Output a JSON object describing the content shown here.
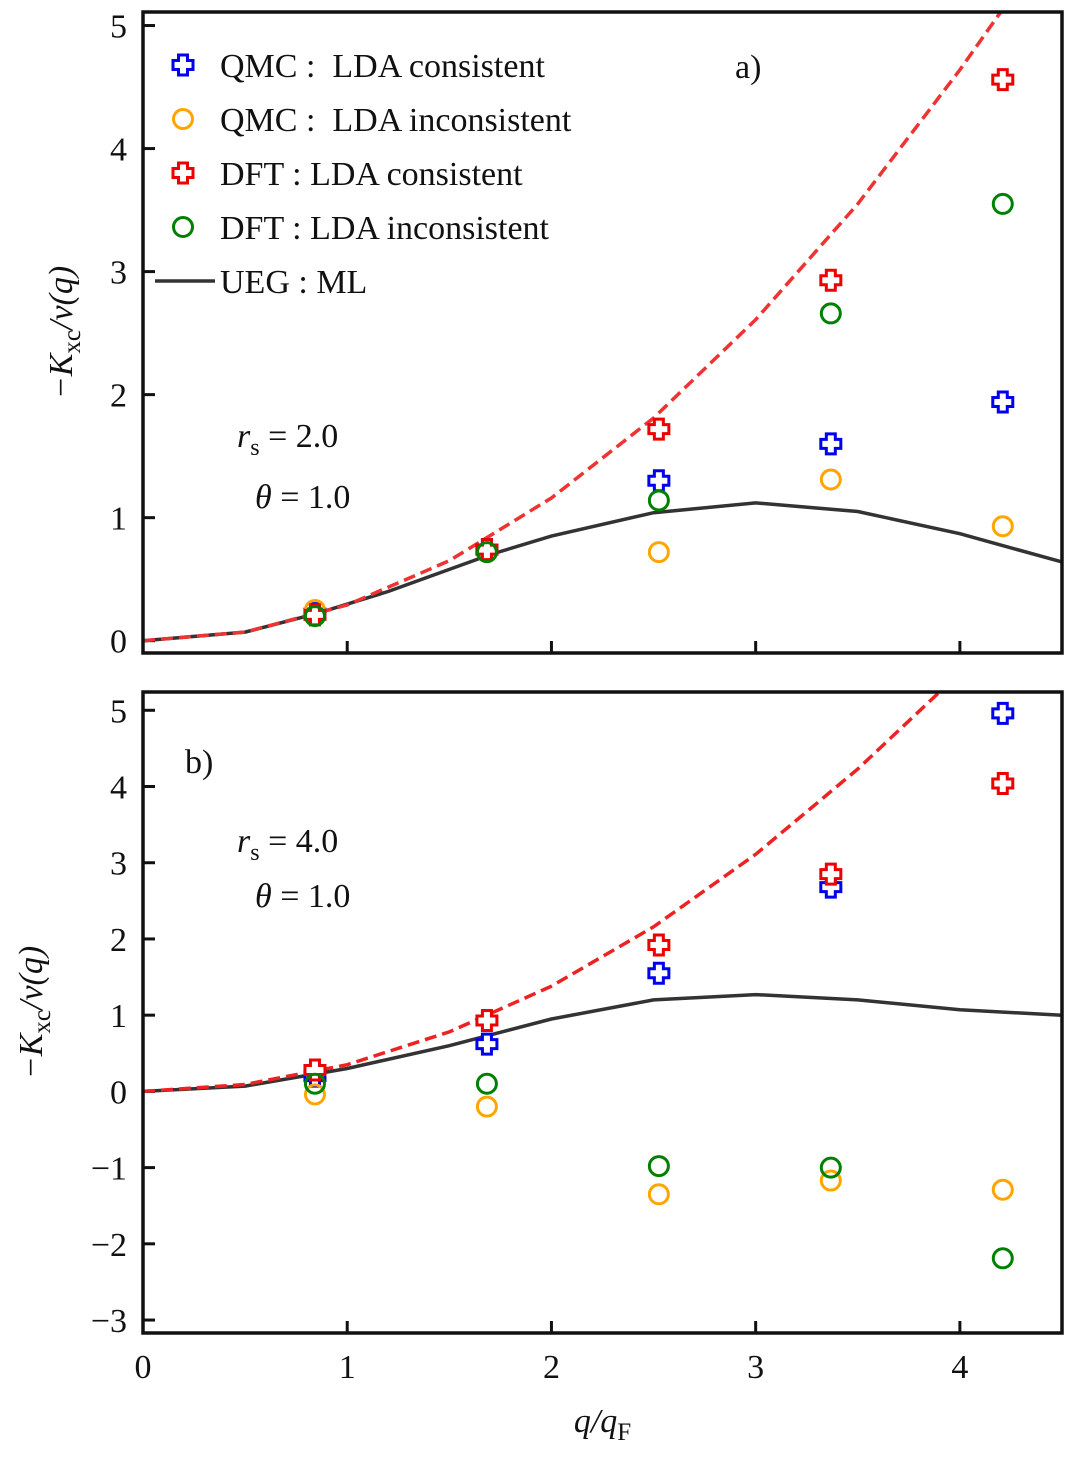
{
  "chart_data": [
    {
      "type": "scatter",
      "panel_label": "a)",
      "legend": "upper left",
      "ylabel": {
        "base": "−K",
        "sub": "xc",
        "rest": "/v(q)"
      },
      "annotations": [
        {
          "base": "r",
          "sub": "s",
          "rest": " = 2.0"
        },
        {
          "base": "θ",
          "sub": "",
          "rest": " = 1.0"
        }
      ],
      "xlim": [
        0,
        4.5
      ],
      "xticks": [
        0,
        1,
        2,
        3,
        4
      ],
      "show_xtick_labels": false,
      "ylim": [
        -0.1,
        5.11
      ],
      "yticks": [
        0,
        1,
        2,
        3,
        4,
        5
      ],
      "series": [
        {
          "name": "QMC :  LDA consistent",
          "color": "#0000ee",
          "marker": "plus",
          "x": [
            0.842,
            1.684,
            2.526,
            3.368,
            4.21
          ],
          "values": [
            0.22,
            0.74,
            1.3,
            1.6,
            1.94
          ]
        },
        {
          "name": "QMC :  LDA inconsistent",
          "color": "#ffa500",
          "marker": "circle",
          "x": [
            0.842,
            1.684,
            2.526,
            3.368,
            4.21
          ],
          "values": [
            0.25,
            0.72,
            0.72,
            1.31,
            0.93
          ]
        },
        {
          "name": "DFT : LDA consistent",
          "color": "#ee0000",
          "marker": "plus",
          "x": [
            0.842,
            1.684,
            2.526,
            3.368,
            4.21
          ],
          "values": [
            0.21,
            0.74,
            1.72,
            2.93,
            4.56
          ]
        },
        {
          "name": "DFT : LDA inconsistent",
          "color": "#008000",
          "marker": "circle",
          "x": [
            0.842,
            1.684,
            2.526,
            3.368,
            4.21
          ],
          "values": [
            0.2,
            0.72,
            1.14,
            2.66,
            3.55
          ]
        },
        {
          "name": "UEG : ML",
          "color": "#333333",
          "linestyle": "solid",
          "x": [
            0,
            0.5,
            0.85,
            1.2,
            1.7,
            2,
            2.5,
            3,
            3.5,
            4,
            4.5
          ],
          "values": [
            0,
            0.07,
            0.22,
            0.4,
            0.7,
            0.85,
            1.04,
            1.12,
            1.05,
            0.87,
            0.64
          ]
        },
        {
          "color": "#ee3333",
          "linestyle": "dashed",
          "x": [
            0,
            0.5,
            1,
            1.5,
            2,
            2.5,
            3,
            3.5,
            4,
            4.2
          ],
          "values": [
            0,
            0.07,
            0.29,
            0.65,
            1.16,
            1.81,
            2.61,
            3.55,
            4.64,
            5.11
          ]
        }
      ]
    },
    {
      "type": "scatter",
      "panel_label": "b)",
      "ylabel": {
        "base": "−K",
        "sub": "xc",
        "rest": "/v(q)"
      },
      "xlabel": {
        "base": "q/q",
        "sub": "F",
        "rest": ""
      },
      "annotations": [
        {
          "base": "r",
          "sub": "s",
          "rest": " = 4.0"
        },
        {
          "base": "θ",
          "sub": "",
          "rest": " = 1.0"
        }
      ],
      "xlim": [
        0,
        4.5
      ],
      "xticks": [
        0,
        1,
        2,
        3,
        4
      ],
      "show_xtick_labels": true,
      "ylim": [
        -3.17,
        5.24
      ],
      "yticks": [
        {
          "value": -3,
          "label": "−3"
        },
        {
          "value": -2,
          "label": "−2"
        },
        {
          "value": -1,
          "label": "−1"
        },
        0,
        1,
        2,
        3,
        4,
        5
      ],
      "series": [
        {
          "color": "#0000ee",
          "marker": "plus",
          "x": [
            0.842,
            1.684,
            2.526,
            3.368,
            4.21
          ],
          "values": [
            0.2,
            0.62,
            1.55,
            2.68,
            4.96
          ]
        },
        {
          "color": "#ffa500",
          "marker": "circle",
          "x": [
            0.842,
            1.684,
            2.526,
            3.368,
            4.21
          ],
          "values": [
            -0.04,
            -0.2,
            -1.35,
            -1.17,
            -1.29
          ]
        },
        {
          "color": "#ee0000",
          "marker": "plus",
          "x": [
            0.842,
            1.684,
            2.526,
            3.368,
            4.21
          ],
          "values": [
            0.28,
            0.93,
            1.92,
            2.85,
            4.04
          ]
        },
        {
          "color": "#008000",
          "marker": "circle",
          "x": [
            0.842,
            1.684,
            2.526,
            3.368,
            4.21
          ],
          "values": [
            0.1,
            0.1,
            -0.98,
            -1.0,
            -2.19
          ]
        },
        {
          "color": "#333333",
          "linestyle": "solid",
          "x": [
            0,
            0.5,
            1,
            1.5,
            2,
            2.5,
            3,
            3.5,
            4,
            4.5
          ],
          "values": [
            0,
            0.07,
            0.3,
            0.6,
            0.95,
            1.2,
            1.27,
            1.2,
            1.07,
            1.0
          ]
        },
        {
          "color": "#ee2222",
          "linestyle": "dashed",
          "x": [
            0,
            0.5,
            1,
            1.5,
            2,
            2.5,
            3,
            3.5,
            3.9
          ],
          "values": [
            0,
            0.09,
            0.35,
            0.78,
            1.38,
            2.16,
            3.11,
            4.23,
            5.24
          ]
        }
      ]
    }
  ]
}
